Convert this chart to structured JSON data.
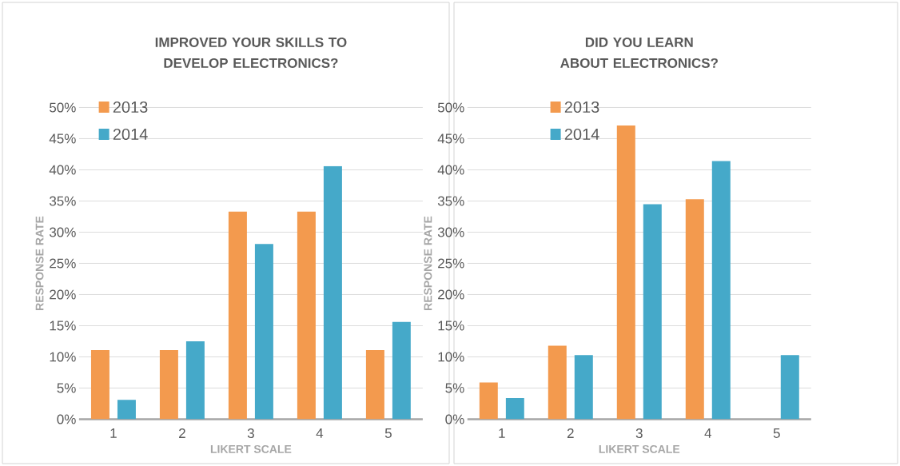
{
  "chart_data": [
    {
      "type": "bar",
      "title": "IMPROVED YOUR SKILLS TO DEVELOP ELECTRONICS?",
      "xlabel": "LIKERT SCALE",
      "ylabel": "RESPONSE RATE",
      "categories": [
        "1",
        "2",
        "3",
        "4",
        "5"
      ],
      "series": [
        {
          "name": "2013",
          "color": "#f39a4e",
          "values": [
            11.1,
            11.1,
            33.3,
            33.3,
            11.1
          ]
        },
        {
          "name": "2014",
          "color": "#45a9c9",
          "values": [
            3.1,
            12.5,
            28.1,
            40.6,
            15.6
          ]
        }
      ],
      "ylim": [
        0,
        50
      ],
      "yticks": [
        {
          "value": 0,
          "label": "0%"
        },
        {
          "value": 5,
          "label": "5%"
        },
        {
          "value": 10,
          "label": "10%"
        },
        {
          "value": 15,
          "label": "15%"
        },
        {
          "value": 20,
          "label": "20%"
        },
        {
          "value": 25,
          "label": "25%"
        },
        {
          "value": 30,
          "label": "30%"
        },
        {
          "value": 35,
          "label": "35%"
        },
        {
          "value": 40,
          "label": "40%"
        },
        {
          "value": 45,
          "label": "45%"
        },
        {
          "value": 50,
          "label": "50%"
        }
      ],
      "grid": "y",
      "legend": "top left"
    },
    {
      "type": "bar",
      "title": "DID YOU LEARN ABOUT ELECTRONICS?",
      "xlabel": "LIKERT SCALE",
      "ylabel": "RESPONSE RATE",
      "categories": [
        "1",
        "2",
        "3",
        "4",
        "5"
      ],
      "series": [
        {
          "name": "2013",
          "color": "#f39a4e",
          "values": [
            5.9,
            11.8,
            47.1,
            35.3,
            0
          ]
        },
        {
          "name": "2014",
          "color": "#45a9c9",
          "values": [
            3.4,
            10.3,
            34.5,
            41.4,
            10.3
          ]
        }
      ],
      "ylim": [
        0,
        50
      ],
      "yticks": [
        {
          "value": 0,
          "label": "0%"
        },
        {
          "value": 5,
          "label": "5%"
        },
        {
          "value": 10,
          "label": "10%"
        },
        {
          "value": 15,
          "label": "15%"
        },
        {
          "value": 20,
          "label": "20%"
        },
        {
          "value": 25,
          "label": "25%"
        },
        {
          "value": 30,
          "label": "30%"
        },
        {
          "value": 35,
          "label": "35%"
        },
        {
          "value": 40,
          "label": "40%"
        },
        {
          "value": 45,
          "label": "45%"
        },
        {
          "value": 50,
          "label": "50%"
        }
      ],
      "grid": "y",
      "legend": "top left"
    }
  ]
}
